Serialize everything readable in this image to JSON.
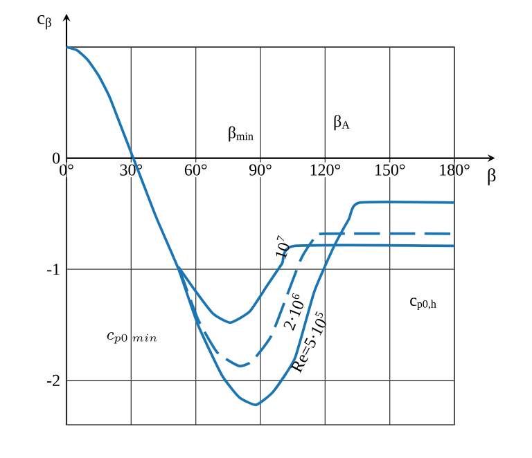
{
  "chart_data": {
    "type": "line",
    "xlabel": "β",
    "ylabel": "c$_{β}$",
    "xlim": [
      0,
      180
    ],
    "ylim": [
      -2.4,
      1
    ],
    "xticks": [
      {
        "value": 0,
        "label": "0°"
      },
      {
        "value": 30,
        "label": "30°"
      },
      {
        "value": 60,
        "label": "60°"
      },
      {
        "value": 90,
        "label": "90°"
      },
      {
        "value": 120,
        "label": "120°"
      },
      {
        "value": 150,
        "label": "150°"
      },
      {
        "value": 180,
        "label": "180°"
      }
    ],
    "yticks": [
      {
        "value": 1,
        "label": null
      },
      0,
      -1,
      -2
    ],
    "grid": true,
    "legend": false,
    "marker": "none",
    "series": [
      {
        "name": "10$^{7}$",
        "color": "#1b75b3",
        "line_style": "solid",
        "x": [
          52,
          60,
          68,
          76,
          85,
          93,
          100,
          106,
          180
        ],
        "values": [
          -0.98,
          -1.2,
          -1.4,
          -1.48,
          -1.38,
          -1.15,
          -0.95,
          -0.79,
          -0.79
        ]
      },
      {
        "name": "2·10$^{6}$",
        "color": "#1b75b3",
        "line_style": "dashed",
        "x": [
          52,
          61,
          70,
          80,
          86,
          95,
          103,
          109,
          115,
          119,
          180
        ],
        "values": [
          -0.98,
          -1.45,
          -1.75,
          -1.87,
          -1.83,
          -1.6,
          -1.2,
          -0.9,
          -0.72,
          -0.68,
          -0.68
        ]
      },
      {
        "name": "Re=5·10$^{5}$",
        "color": "#1b75b3",
        "line_style": "solid",
        "x": [
          0,
          5,
          10,
          15,
          20,
          25,
          31,
          36,
          42,
          52,
          61,
          72,
          80,
          88,
          96,
          106,
          115,
          124,
          131,
          136,
          180
        ],
        "values": [
          1,
          0.97,
          0.88,
          0.74,
          0.55,
          0.3,
          0,
          -0.25,
          -0.55,
          -1.0,
          -1.5,
          -1.95,
          -2.15,
          -2.22,
          -2.1,
          -1.8,
          -1.2,
          -0.8,
          -0.55,
          -0.4,
          -0.4
        ]
      }
    ],
    "annotations": [
      "β$_{min}$",
      "β$_{A}$",
      "c_{p0\\ min}",
      "c$_{p0,h}$"
    ]
  }
}
